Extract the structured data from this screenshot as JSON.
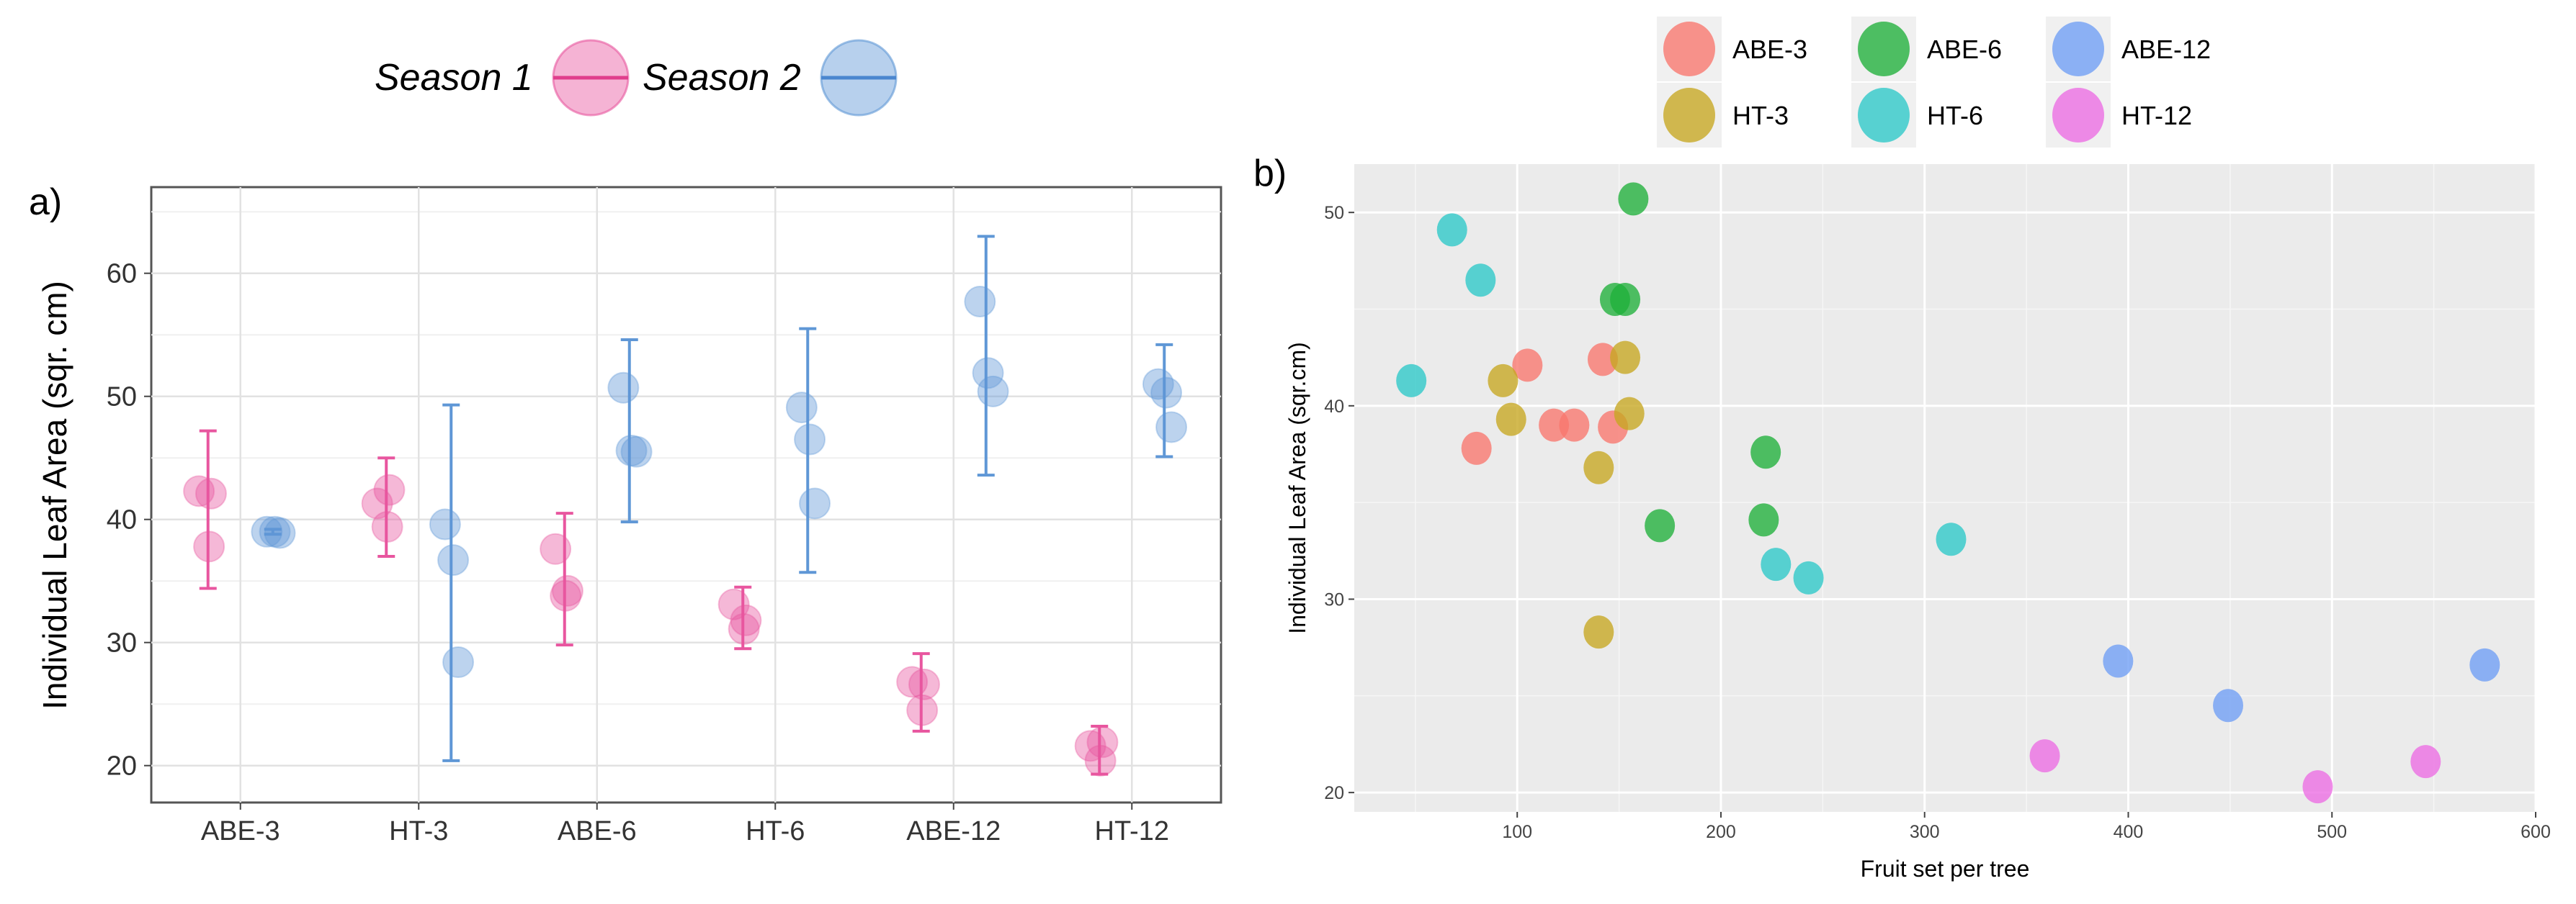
{
  "chart_data": [
    {
      "panel": "a)",
      "type": "scatter",
      "ylabel": "Individual Leaf Area (sqr. cm)",
      "xlabel": "",
      "categories": [
        "ABE-3",
        "HT-3",
        "ABE-6",
        "HT-6",
        "ABE-12",
        "HT-12"
      ],
      "ylim": [
        17,
        67
      ],
      "yticks": [
        20,
        30,
        40,
        50,
        60
      ],
      "grid": true,
      "legend_position": "top",
      "series": [
        {
          "name": "Season 1",
          "color": "#e8569f",
          "points": {
            "ABE-3": [
              42.3,
              42.1,
              37.8
            ],
            "HT-3": [
              41.3,
              42.4,
              39.4
            ],
            "ABE-6": [
              37.6,
              34.2,
              33.8
            ],
            "HT-6": [
              33.1,
              31.8,
              31.1
            ],
            "ABE-12": [
              26.8,
              26.6,
              24.5
            ],
            "HT-12": [
              21.6,
              21.9,
              20.4
            ]
          },
          "errorbars": {
            "ABE-3": [
              34.4,
              47.2
            ],
            "HT-3": [
              37.0,
              45.0
            ],
            "ABE-6": [
              29.8,
              40.5
            ],
            "HT-6": [
              29.5,
              34.5
            ],
            "ABE-12": [
              22.8,
              29.1
            ],
            "HT-12": [
              19.3,
              23.2
            ]
          }
        },
        {
          "name": "Season 2",
          "color": "#5f97d6",
          "points": {
            "ABE-3": [
              39.0,
              39.0,
              38.9
            ],
            "HT-3": [
              39.6,
              36.7,
              28.4
            ],
            "ABE-6": [
              50.7,
              45.6,
              45.5
            ],
            "HT-6": [
              49.1,
              46.5,
              41.3
            ],
            "ABE-12": [
              57.7,
              51.9,
              50.4
            ],
            "HT-12": [
              51.0,
              50.3,
              47.5
            ]
          },
          "errorbars": {
            "ABE-3": [
              38.8,
              39.2
            ],
            "HT-3": [
              20.4,
              49.3
            ],
            "ABE-6": [
              39.8,
              54.6
            ],
            "HT-6": [
              35.7,
              55.5
            ],
            "ABE-12": [
              43.6,
              63.0
            ],
            "HT-12": [
              45.1,
              54.2
            ]
          }
        }
      ]
    },
    {
      "panel": "b)",
      "type": "scatter",
      "xlabel": "Fruit set per tree",
      "ylabel": "Individual Leaf Area (sqr.cm)",
      "xlim": [
        20,
        600
      ],
      "ylim": [
        19,
        52.5
      ],
      "xticks": [
        100,
        200,
        300,
        400,
        500,
        600
      ],
      "yticks": [
        20,
        30,
        40,
        50
      ],
      "grid": true,
      "legend_position": "top",
      "series": [
        {
          "name": "ABE-3",
          "color": "#f8766d",
          "x": [
            80,
            105,
            118,
            128,
            142,
            147
          ],
          "y": [
            37.8,
            42.1,
            39.0,
            39.0,
            42.4,
            38.9
          ]
        },
        {
          "name": "HT-3",
          "color": "#c7a720",
          "x": [
            93,
            97,
            140,
            140,
            153,
            155
          ],
          "y": [
            41.3,
            39.3,
            28.3,
            36.8,
            42.5,
            39.6
          ]
        },
        {
          "name": "ABE-6",
          "color": "#1fb03a",
          "x": [
            148,
            153,
            157,
            170,
            221,
            222
          ],
          "y": [
            45.5,
            45.5,
            50.7,
            33.8,
            34.1,
            37.6
          ]
        },
        {
          "name": "HT-6",
          "color": "#2bc8c8",
          "x": [
            48,
            68,
            82,
            227,
            243,
            313
          ],
          "y": [
            41.3,
            49.1,
            46.5,
            31.8,
            31.1,
            33.1
          ]
        },
        {
          "name": "ABE-12",
          "color": "#6e9ef5",
          "x": [
            395,
            449,
            575
          ],
          "y": [
            26.8,
            24.5,
            26.6
          ]
        },
        {
          "name": "HT-12",
          "color": "#ec6be3",
          "x": [
            359,
            493,
            546
          ],
          "y": [
            21.9,
            20.3,
            21.6
          ]
        }
      ]
    }
  ]
}
